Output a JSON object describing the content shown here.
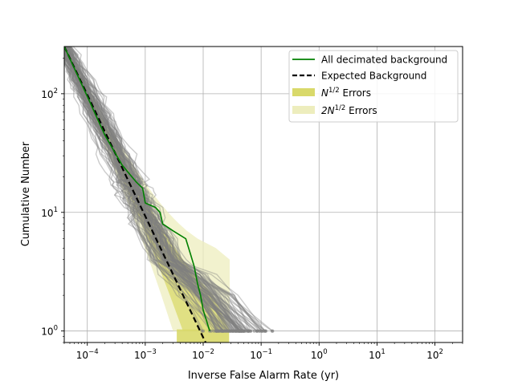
{
  "chart_data": {
    "type": "line",
    "title": "",
    "xlabel": "Inverse False Alarm Rate (yr)",
    "ylabel": "Cumulative Number",
    "xscale": "log",
    "yscale": "log",
    "xlim": [
      4e-05,
      300
    ],
    "ylim": [
      0.8,
      250
    ],
    "grid": true,
    "legend_position": "top-right",
    "x_tick_labels": [
      {
        "base": "10",
        "exp": "−4",
        "value": 0.0001
      },
      {
        "base": "10",
        "exp": "−3",
        "value": 0.001
      },
      {
        "base": "10",
        "exp": "−2",
        "value": 0.01
      },
      {
        "base": "10",
        "exp": "−1",
        "value": 0.1
      },
      {
        "base": "10",
        "exp": "0",
        "value": 1
      },
      {
        "base": "10",
        "exp": "1",
        "value": 10
      },
      {
        "base": "10",
        "exp": "2",
        "value": 100
      }
    ],
    "y_tick_labels": [
      {
        "base": "10",
        "exp": "0",
        "value": 1
      },
      {
        "base": "10",
        "exp": "1",
        "value": 10
      },
      {
        "base": "10",
        "exp": "2",
        "value": 100
      }
    ],
    "legend": [
      {
        "label": "All decimated background",
        "kind": "line",
        "color": "#008000"
      },
      {
        "label": "Expected Background",
        "kind": "dashed",
        "color": "#000000"
      },
      {
        "label_main": "N",
        "label_sup": "1/2",
        "label_tail": " Errors",
        "kind": "patch",
        "color": "#d9d96a"
      },
      {
        "label_main": "2N",
        "label_sup": "1/2",
        "label_tail": " Errors",
        "kind": "patch",
        "color": "#ededbd"
      }
    ],
    "expected_background": {
      "color": "#000000",
      "style": "dashed",
      "points": [
        [
          4e-05,
          250
        ],
        [
          0.011,
          0.8
        ]
      ]
    },
    "all_decimated_background": {
      "color": "#008000",
      "points": [
        [
          4e-05,
          250
        ],
        [
          0.0001,
          95
        ],
        [
          0.0002,
          45
        ],
        [
          0.0004,
          25
        ],
        [
          0.0007,
          18
        ],
        [
          0.0009,
          16
        ],
        [
          0.001,
          12
        ],
        [
          0.0015,
          11
        ],
        [
          0.0018,
          10
        ],
        [
          0.002,
          8
        ],
        [
          0.003,
          7
        ],
        [
          0.005,
          6
        ],
        [
          0.006,
          4.5
        ],
        [
          0.007,
          3.5
        ],
        [
          0.008,
          2.5
        ],
        [
          0.009,
          2
        ],
        [
          0.01,
          1.5
        ],
        [
          0.013,
          1
        ]
      ]
    },
    "error_bands": {
      "inner": {
        "color": "#d9d96a",
        "opacity": 0.75
      },
      "outer": {
        "color": "#ededbd",
        "opacity": 0.75
      }
    },
    "realizations": {
      "count": 100,
      "color": "#808080",
      "opacity": 0.4,
      "endpoint_y": 1
    }
  }
}
